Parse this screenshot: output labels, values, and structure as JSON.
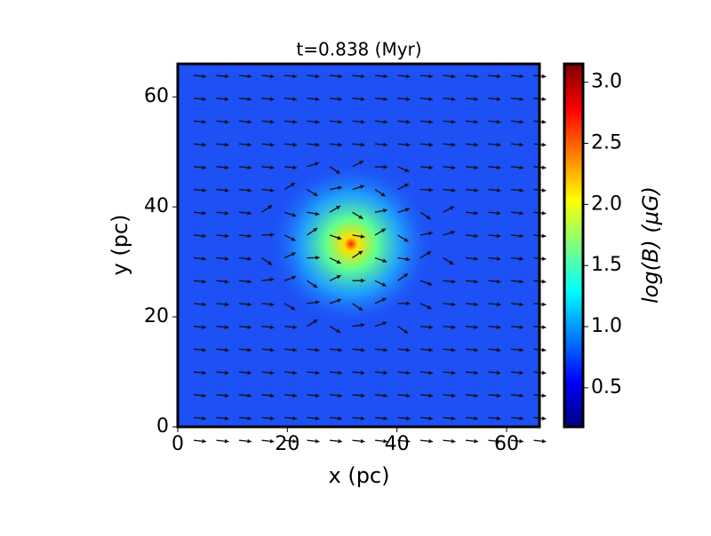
{
  "chart_data": {
    "type": "heatmap",
    "title": "t=0.838 (Myr)",
    "x_label": "x (pc)",
    "y_label": "y (pc)",
    "xlim": [
      0,
      66
    ],
    "ylim": [
      0,
      66
    ],
    "xticks": [
      0,
      20,
      40,
      60
    ],
    "yticks": [
      0,
      20,
      40,
      60
    ],
    "colormap": "jet",
    "colorbar": {
      "label": "log(B) (μG)",
      "lim": [
        0.18,
        3.15
      ],
      "ticks": [
        0.5,
        {
          "value": 1,
          "label": "1.0"
        },
        1.5,
        {
          "value": 2,
          "label": "2.0"
        },
        2.5,
        {
          "value": 3,
          "label": "3.0"
        }
      ]
    }
  }
}
